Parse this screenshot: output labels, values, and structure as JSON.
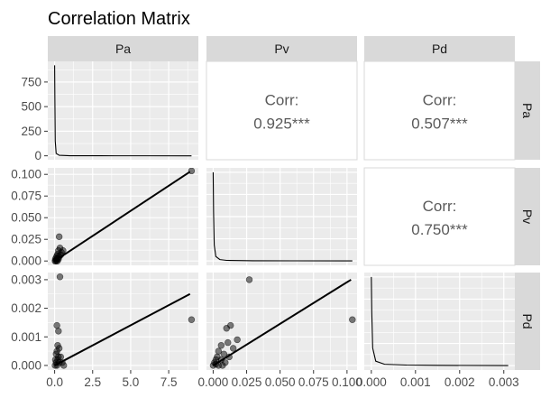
{
  "chart_data": {
    "type": "scatter-matrix",
    "title": "Correlation Matrix",
    "variables": [
      "Pa",
      "Pv",
      "Pd"
    ],
    "grid": true,
    "axes": {
      "Pa": {
        "range": [
          -0.45,
          9.45
        ],
        "ticks": [
          0,
          2.5,
          5,
          7.5
        ],
        "tick_labels": [
          "0.0",
          "2.5",
          "5.0",
          "7.5"
        ]
      },
      "Pv": {
        "range": [
          -0.005,
          0.1075
        ],
        "ticks": [
          0,
          0.025,
          0.05,
          0.075,
          0.1
        ],
        "tick_labels": [
          "0.000",
          "0.025",
          "0.050",
          "0.075",
          "0.100"
        ]
      },
      "Pd": {
        "range": [
          -0.00016,
          0.00325
        ],
        "ticks": [
          0,
          0.001,
          0.002,
          0.003
        ],
        "tick_labels": [
          "0.000",
          "0.001",
          "0.002",
          "0.003"
        ]
      }
    },
    "density_axis": {
      "range": [
        -40,
        960
      ],
      "ticks": [
        0,
        250,
        500,
        750
      ],
      "tick_labels": [
        "0",
        "250",
        "500",
        "750"
      ]
    },
    "correlations": [
      {
        "x": "Pv",
        "y": "Pa",
        "label": "Corr:",
        "value": "0.925***"
      },
      {
        "x": "Pd",
        "y": "Pa",
        "label": "Corr:",
        "value": "0.507***"
      },
      {
        "x": "Pd",
        "y": "Pv",
        "label": "Corr:",
        "value": "0.750***"
      }
    ],
    "scatter": [
      {
        "x": "Pa",
        "y": "Pv",
        "points": [
          [
            9.0,
            0.104
          ],
          [
            0.3,
            0.028
          ],
          [
            0.35,
            0.015
          ],
          [
            0.25,
            0.012
          ],
          [
            0.45,
            0.01
          ],
          [
            0.2,
            0.008
          ],
          [
            0.15,
            0.006
          ],
          [
            0.1,
            0.004
          ],
          [
            0.3,
            0.005
          ],
          [
            0.05,
            0.002
          ],
          [
            0.2,
            0.003
          ],
          [
            0.12,
            0.001
          ],
          [
            0.08,
            0.0
          ],
          [
            0.4,
            0.007
          ],
          [
            0.25,
            0.002
          ],
          [
            0.03,
            0.0
          ],
          [
            0.55,
            0.012
          ],
          [
            0.18,
            0.0
          ]
        ],
        "fit": [
          [
            0,
            0
          ],
          [
            8.9,
            0.103
          ]
        ]
      },
      {
        "x": "Pa",
        "y": "Pd",
        "points": [
          [
            0.35,
            0.0031
          ],
          [
            9.0,
            0.0016
          ],
          [
            0.15,
            0.0014
          ],
          [
            0.25,
            0.0012
          ],
          [
            0.2,
            0.0007
          ],
          [
            0.3,
            0.0006
          ],
          [
            0.15,
            0.0005
          ],
          [
            0.1,
            0.0004
          ],
          [
            0.25,
            0.0003
          ],
          [
            0.4,
            0.0003
          ],
          [
            0.05,
            0.0002
          ],
          [
            0.2,
            0.0002
          ],
          [
            0.5,
            0.0001
          ],
          [
            0.1,
            0.0001
          ],
          [
            0.3,
            0.0001
          ],
          [
            0.03,
            0.0
          ],
          [
            0.15,
            0.0
          ],
          [
            0.6,
            0.0
          ]
        ],
        "fit": [
          [
            0,
            0.0
          ],
          [
            8.9,
            0.0025
          ]
        ]
      },
      {
        "x": "Pv",
        "y": "Pd",
        "points": [
          [
            0.027,
            0.003
          ],
          [
            0.104,
            0.0016
          ],
          [
            0.013,
            0.0014
          ],
          [
            0.01,
            0.0013
          ],
          [
            0.018,
            0.0009
          ],
          [
            0.011,
            0.0008
          ],
          [
            0.006,
            0.0007
          ],
          [
            0.015,
            0.0006
          ],
          [
            0.004,
            0.0005
          ],
          [
            0.008,
            0.0004
          ],
          [
            0.003,
            0.0003
          ],
          [
            0.012,
            0.0003
          ],
          [
            0.002,
            0.0002
          ],
          [
            0.006,
            0.0002
          ],
          [
            0.009,
            0.0001
          ],
          [
            0.001,
            0.0001
          ],
          [
            0.004,
            0.0
          ],
          [
            0.0,
            0.0
          ],
          [
            0.002,
            5e-05
          ],
          [
            0.007,
            0.0
          ]
        ],
        "fit": [
          [
            0,
            0.0
          ],
          [
            0.103,
            0.003
          ]
        ]
      }
    ],
    "densities": [
      {
        "variable": "Pa",
        "curve": [
          [
            0.0,
            920
          ],
          [
            0.015,
            600
          ],
          [
            0.04,
            150
          ],
          [
            0.1,
            25
          ],
          [
            0.3,
            5
          ],
          [
            1.0,
            1
          ],
          [
            3.0,
            0.3
          ],
          [
            6.0,
            0.1
          ],
          [
            9.0,
            0.0
          ]
        ]
      },
      {
        "variable": "Pv",
        "curve": [
          [
            0.0,
            1.0
          ],
          [
            0.0003,
            0.55
          ],
          [
            0.0008,
            0.18
          ],
          [
            0.002,
            0.05
          ],
          [
            0.005,
            0.015
          ],
          [
            0.01,
            0.006
          ],
          [
            0.03,
            0.002
          ],
          [
            0.06,
            0.001
          ],
          [
            0.104,
            0.0
          ]
        ]
      },
      {
        "variable": "Pd",
        "curve": [
          [
            0.0,
            1.0
          ],
          [
            1e-05,
            0.6
          ],
          [
            3e-05,
            0.2
          ],
          [
            0.0001,
            0.05
          ],
          [
            0.0003,
            0.015
          ],
          [
            0.0008,
            0.006
          ],
          [
            0.0015,
            0.003
          ],
          [
            0.0031,
            0.0
          ]
        ]
      }
    ]
  }
}
